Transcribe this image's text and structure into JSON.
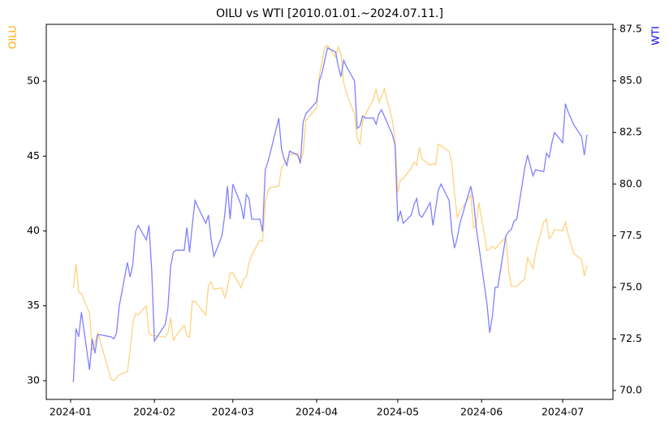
{
  "chart_data": {
    "type": "line",
    "title": "OILU vs WTI [2010.01.01.~2024.07.11.]",
    "ylabel": "OILU",
    "y2label": "WTI",
    "x": [
      1,
      2,
      3,
      4,
      7,
      8,
      9,
      10,
      11,
      15,
      16,
      17,
      18,
      21,
      22,
      23,
      24,
      25,
      28,
      29,
      30,
      31,
      32,
      35,
      36,
      37,
      38,
      39,
      42,
      43,
      44,
      45,
      46,
      50,
      51,
      52,
      53,
      56,
      57,
      58,
      59,
      60,
      63,
      64,
      65,
      66,
      67,
      70,
      71,
      72,
      73,
      74,
      77,
      78,
      79,
      80,
      81,
      84,
      85,
      86,
      87,
      91,
      92,
      93,
      94,
      95,
      98,
      99,
      100,
      101,
      102,
      105,
      106,
      107,
      108,
      109,
      112,
      113,
      114,
      115,
      116,
      119,
      120,
      121,
      122,
      123,
      126,
      127,
      128,
      129,
      130,
      133,
      134,
      135,
      136,
      137,
      140,
      141,
      142,
      143,
      144,
      148,
      149,
      150,
      151,
      154,
      155,
      156,
      157,
      158,
      161,
      162,
      163,
      164,
      165,
      168,
      169,
      171,
      172,
      175,
      176,
      177,
      178,
      179,
      182,
      183,
      184,
      186,
      189,
      190,
      191
    ],
    "xlim": [
      -9,
      200.6
    ],
    "xticks": [
      {
        "value": 0,
        "label": "2024-01"
      },
      {
        "value": 31,
        "label": "2024-02"
      },
      {
        "value": 60,
        "label": "2024-03"
      },
      {
        "value": 91,
        "label": "2024-04"
      },
      {
        "value": 121,
        "label": "2024-05"
      },
      {
        "value": 152,
        "label": "2024-06"
      },
      {
        "value": 182,
        "label": "2024-07"
      }
    ],
    "ylim": [
      28.75,
      53.8
    ],
    "yticks": [
      30,
      35,
      40,
      45,
      50
    ],
    "y2lim": [
      69.57,
      87.74
    ],
    "y2ticks": [
      {
        "value": 70,
        "label": "70.0"
      },
      72.5,
      {
        "value": 75,
        "label": "75.0"
      },
      77.5,
      {
        "value": 80,
        "label": "80.0"
      },
      82.5,
      {
        "value": 85,
        "label": "85.0"
      },
      87.5
    ],
    "series": [
      {
        "name": "OILU",
        "color": "#ffd280",
        "values": [
          36.2,
          37.8,
          35.9,
          35.8,
          34.5,
          32.0,
          32.5,
          33.2,
          32.6,
          30.1,
          30.0,
          30.2,
          30.4,
          30.6,
          32.0,
          33.8,
          34.5,
          34.4,
          35.0,
          33.2,
          33.0,
          33.0,
          33.0,
          32.9,
          33.2,
          34.2,
          32.7,
          33.0,
          33.7,
          33.0,
          32.9,
          35.3,
          35.3,
          34.4,
          36.4,
          36.6,
          36.1,
          36.2,
          35.5,
          36.2,
          37.2,
          37.2,
          36.2,
          36.8,
          36.9,
          37.9,
          38.4,
          39.4,
          39.3,
          41.9,
          42.7,
          42.9,
          43.0,
          44.2,
          44.5,
          44.8,
          45.1,
          45.2,
          44.7,
          45.2,
          47.4,
          48.2,
          50.4,
          51.3,
          52.3,
          52.4,
          51.6,
          52.3,
          51.8,
          49.9,
          49.2,
          47.8,
          46.2,
          45.8,
          47.3,
          47.8,
          48.8,
          49.5,
          48.6,
          49.0,
          49.5,
          47.4,
          46.1,
          42.6,
          43.4,
          43.5,
          44.2,
          44.6,
          44.4,
          45.6,
          44.8,
          44.4,
          44.5,
          44.4,
          45.8,
          45.7,
          45.3,
          44.5,
          42.5,
          40.9,
          41.3,
          42.4,
          40.2,
          40.4,
          41.9,
          38.7,
          38.8,
          39.0,
          38.8,
          39.0,
          39.6,
          37.4,
          36.3,
          36.3,
          36.3,
          36.8,
          38.2,
          37.5,
          38.6,
          40.6,
          40.8,
          39.5,
          39.7,
          40.1,
          40.0,
          40.6,
          39.8,
          38.5,
          38.1,
          37.0,
          37.7
        ]
      },
      {
        "name": "WTI",
        "color": "#8080ff",
        "axis": "y2",
        "values": [
          70.4,
          73.0,
          72.6,
          73.8,
          71.0,
          72.5,
          71.8,
          72.7,
          72.7,
          72.6,
          72.5,
          72.8,
          74.1,
          76.2,
          75.5,
          76.1,
          77.7,
          78.0,
          77.3,
          78.0,
          75.8,
          72.4,
          72.6,
          73.2,
          74.0,
          76.0,
          76.7,
          76.8,
          76.8,
          77.9,
          76.7,
          78.0,
          79.2,
          78.1,
          78.5,
          77.3,
          76.5,
          77.5,
          78.5,
          79.9,
          78.3,
          80.0,
          79.0,
          78.3,
          79.5,
          79.3,
          78.3,
          78.3,
          77.7,
          80.7,
          81.1,
          81.6,
          83.2,
          81.7,
          81.2,
          80.9,
          81.6,
          81.4,
          81.0,
          83.0,
          83.4,
          84.0,
          85.0,
          85.4,
          86.0,
          86.6,
          86.4,
          85.7,
          85.2,
          86.0,
          85.7,
          85.0,
          82.7,
          82.8,
          83.3,
          83.2,
          83.2,
          82.9,
          83.4,
          83.6,
          83.3,
          82.4,
          81.9,
          78.2,
          78.7,
          78.1,
          78.5,
          79.0,
          79.3,
          78.5,
          78.4,
          79.1,
          78.0,
          78.8,
          79.7,
          80.0,
          79.2,
          77.7,
          76.9,
          77.4,
          78.1,
          79.9,
          79.2,
          77.9,
          77.0,
          74.2,
          72.8,
          73.6,
          75.0,
          75.0,
          77.5,
          77.7,
          77.8,
          78.2,
          78.3,
          80.8,
          81.4,
          80.4,
          80.7,
          80.6,
          81.5,
          81.3,
          82.0,
          82.5,
          82.0,
          83.9,
          83.5,
          82.9,
          82.3,
          81.4,
          82.4
        ]
      }
    ]
  }
}
